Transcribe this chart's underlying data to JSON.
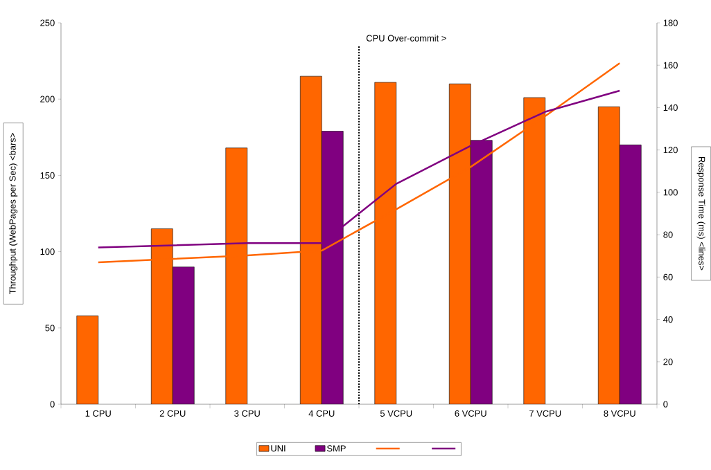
{
  "chart_data": {
    "type": "bar",
    "categories": [
      "1 CPU",
      "2 CPU",
      "3 CPU",
      "4 CPU",
      "5 VCPU",
      "6 VCPU",
      "7 VCPU",
      "8 VCPU"
    ],
    "ylabel": "Throughput (WebPages per Sec) <bars>",
    "y2label": "Response Time (ms) <lines>",
    "ylim": [
      0,
      250
    ],
    "yticks": [
      0,
      50,
      100,
      150,
      200,
      250
    ],
    "y2lim": [
      0,
      180
    ],
    "y2ticks": [
      0,
      20,
      40,
      60,
      80,
      100,
      120,
      140,
      160,
      180
    ],
    "legend": "bottom",
    "annotations": [
      "CPU Over-commit >"
    ],
    "series": [
      {
        "name": "UNI",
        "color": "#ff6600",
        "values": [
          58,
          115,
          168,
          215,
          211,
          210,
          201,
          195
        ]
      },
      {
        "name": "SMP",
        "color": "#800080",
        "values": [
          null,
          90,
          null,
          179,
          null,
          173,
          null,
          170
        ]
      },
      {
        "type": "line",
        "axis": "y2",
        "color": "#ff6600",
        "values": [
          67,
          68.6,
          70.2,
          72.5,
          92,
          112,
          136,
          161
        ]
      },
      {
        "type": "line",
        "axis": "y2",
        "color": "#800080",
        "values": [
          74,
          75,
          76,
          76,
          104,
          122,
          138,
          148
        ]
      }
    ]
  }
}
